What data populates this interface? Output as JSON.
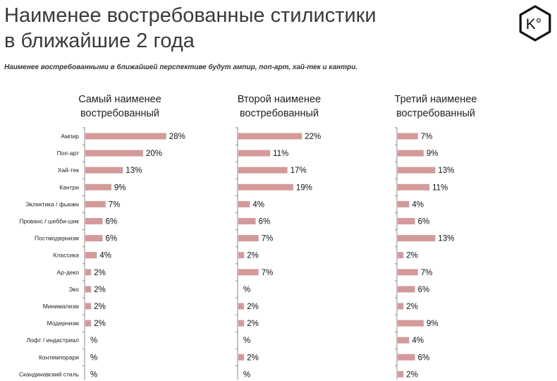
{
  "title": {
    "line1": "Наименее востребованные стилистики",
    "line2": "в ближайшие 2 года"
  },
  "subtitle": "Наименее востребованными в ближайшей перспективе будут ампир, поп-арт, хай-тек и кантри.",
  "logo": {
    "name": "ko-hexagon-logo",
    "text": "K°"
  },
  "colors": {
    "bar": "#d49a9a",
    "axis": "#8a8a8a",
    "text": "#222222"
  },
  "chart_data": {
    "type": "bar",
    "orientation": "horizontal",
    "title": "Наименее востребованные стилистики в ближайшие 2 года",
    "categories": [
      "Ампир",
      "Поп-арт",
      "Хай-тек",
      "Кантри",
      "Эклектика / фьюжн",
      "Прованс / шебби-шик",
      "Постмодернизм",
      "Классика",
      "Ар-деко",
      "Эко",
      "Минимализм",
      "Модернизм",
      "Лофт / индастриал",
      "Контемпорари",
      "Скандинавский стиль"
    ],
    "series": [
      {
        "name": "Самый наименее востребованный",
        "header_lines": [
          "Самый наименее",
          "востребованный"
        ],
        "values": [
          28,
          20,
          13,
          9,
          7,
          6,
          6,
          4,
          2,
          2,
          2,
          2,
          null,
          null,
          null
        ],
        "labels": [
          "28%",
          "20%",
          "13%",
          "9%",
          "7%",
          "6%",
          "6%",
          "4%",
          "2%",
          "2%",
          "2%",
          "2%",
          "%",
          "%",
          "%"
        ]
      },
      {
        "name": "Второй наименее востребованный",
        "header_lines": [
          "Второй наименее",
          "востребованный"
        ],
        "values": [
          22,
          11,
          17,
          19,
          4,
          6,
          7,
          2,
          7,
          null,
          2,
          2,
          null,
          2,
          null
        ],
        "labels": [
          "22%",
          "11%",
          "17%",
          "19%",
          "4%",
          "6%",
          "7%",
          "2%",
          "7%",
          "%",
          "2%",
          "2%",
          "%",
          "2%",
          "%"
        ]
      },
      {
        "name": "Третий наименее востребованный",
        "header_lines": [
          "Третий наименее",
          "востребованный"
        ],
        "values": [
          7,
          9,
          13,
          11,
          4,
          6,
          13,
          2,
          7,
          6,
          2,
          9,
          4,
          6,
          2
        ],
        "labels": [
          "7%",
          "9%",
          "13%",
          "11%",
          "4%",
          "6%",
          "13%",
          "2%",
          "7%",
          "6%",
          "2%",
          "9%",
          "4%",
          "6%",
          "2%"
        ]
      }
    ],
    "xlim": [
      0,
      30
    ]
  }
}
